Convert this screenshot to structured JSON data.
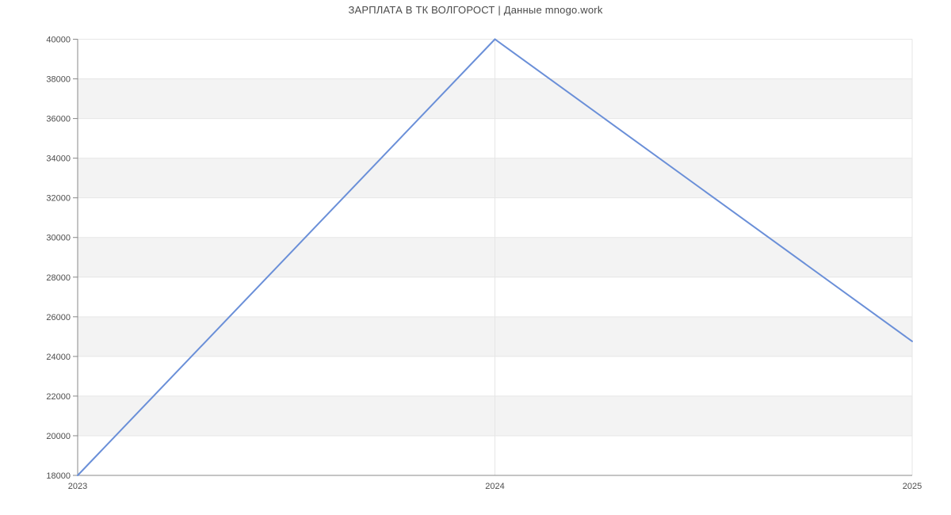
{
  "page": {
    "title": "ЗАРПЛАТА В ТК ВОЛГОРОСТ | Данные mnogo.work"
  },
  "chart_data": {
    "type": "line",
    "title": "ЗАРПЛАТА В ТК ВОЛГОРОСТ | Данные mnogo.work",
    "categories": [
      "2023",
      "2024",
      "2025"
    ],
    "series": [
      {
        "name": "Зарплата",
        "values": [
          18000,
          40000,
          24760
        ]
      }
    ],
    "xlabel": "",
    "ylabel": "",
    "ylim": [
      18000,
      40000
    ],
    "ytick_step": 2000,
    "yticks": [
      18000,
      20000,
      22000,
      24000,
      26000,
      28000,
      30000,
      32000,
      34000,
      36000,
      38000,
      40000
    ],
    "gray_bands": [
      [
        20000,
        22000
      ],
      [
        24000,
        26000
      ],
      [
        28000,
        30000
      ],
      [
        32000,
        34000
      ],
      [
        36000,
        38000
      ]
    ],
    "layout": {
      "grid": true,
      "legend": "none",
      "band_pattern": "alternating-from-top-white",
      "title_position": "top-center"
    },
    "colors": {
      "line": "#6a8fd8",
      "band": "#f3f3f3",
      "gridline": "#e6e6e6",
      "axis": "#888888",
      "tick_label": "#4d4d4d",
      "title": "#4a4a4a",
      "background": "#ffffff"
    }
  }
}
